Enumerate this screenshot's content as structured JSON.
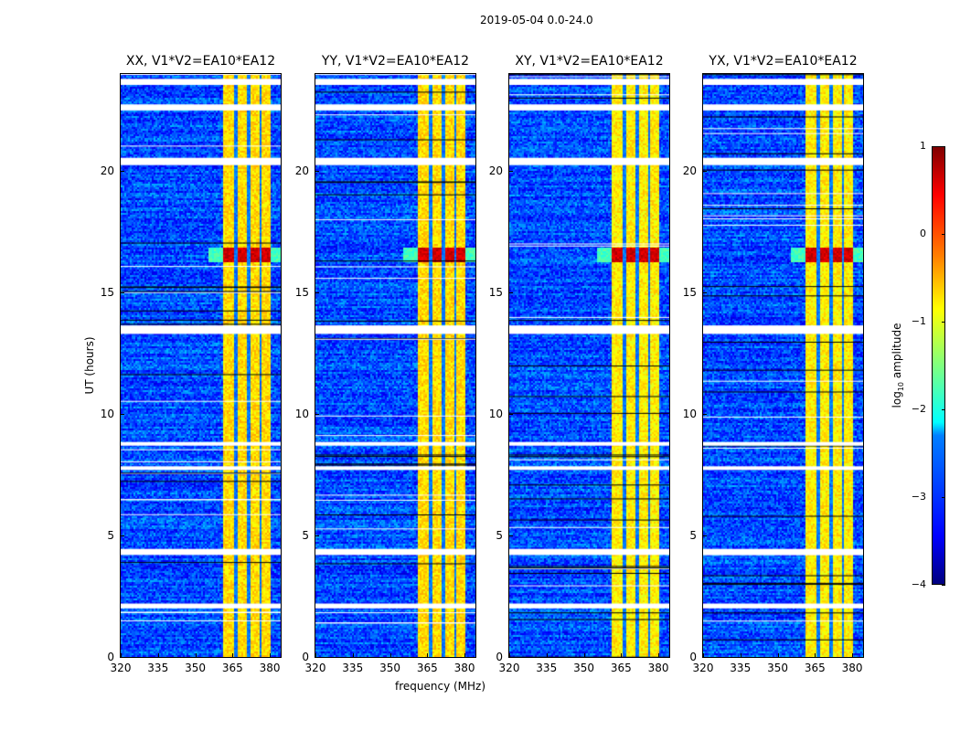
{
  "suptitle": "2019-05-04 0.0-24.0",
  "chart_data": {
    "type": "heatmap",
    "panels": [
      {
        "title": "XX, V1*V2=EA10*EA12"
      },
      {
        "title": "YY, V1*V2=EA10*EA12"
      },
      {
        "title": "XY, V1*V2=EA10*EA12"
      },
      {
        "title": "YX, V1*V2=EA10*EA12"
      }
    ],
    "xlabel": "frequency (MHz)",
    "ylabel": "UT (hours)",
    "xlim": [
      320,
      384.4
    ],
    "ylim": [
      0,
      24
    ],
    "xticks": [
      "320",
      "335",
      "350",
      "365",
      "380"
    ],
    "xtick_values": [
      320,
      335,
      350,
      365,
      380
    ],
    "yticks": [
      "0",
      "5",
      "10",
      "15",
      "20"
    ],
    "ytick_values": [
      0,
      5,
      10,
      15,
      20
    ],
    "background_log_amplitude": -3.0,
    "rfi_band_mhz": [
      361,
      380
    ],
    "rfi_band_log_amplitude": -0.8,
    "rfi_band_gaps_mhz": [
      366,
      371,
      376
    ],
    "burst_hours": [
      16.3,
      16.9
    ],
    "burst_log_amplitude": 0.6,
    "flagged_hours": [
      [
        23.55,
        23.8
      ],
      [
        22.5,
        22.75
      ],
      [
        20.25,
        20.55
      ],
      [
        13.3,
        13.65
      ],
      [
        8.7,
        8.85
      ],
      [
        7.7,
        7.85
      ],
      [
        4.2,
        4.45
      ],
      [
        2.0,
        2.2
      ]
    ],
    "colorbar": {
      "label": "log10 amplitude",
      "label_main": "log",
      "label_sub": "10",
      "label_rest": " amplitude",
      "range": [
        -4,
        1
      ],
      "ticks": [
        "1",
        "0",
        "−1",
        "−2",
        "−3",
        "−4"
      ],
      "tick_values": [
        1,
        0,
        -1,
        -2,
        -3,
        -4
      ],
      "colormap": "jet"
    }
  }
}
